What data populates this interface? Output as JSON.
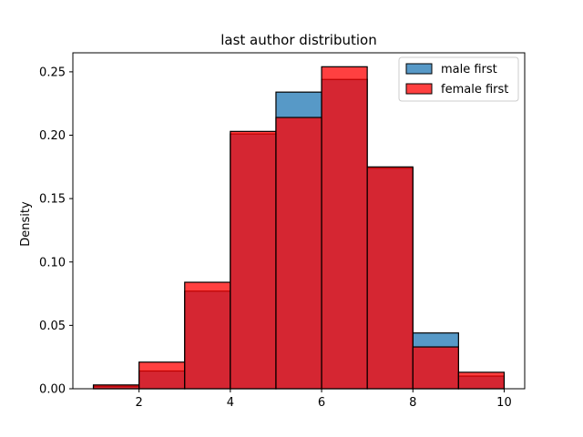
{
  "chart_data": {
    "type": "bar",
    "title": "last author distribution",
    "xlabel": "",
    "ylabel": "Density",
    "bin_edges": [
      1,
      2,
      3,
      4,
      5,
      6,
      7,
      8,
      9,
      10
    ],
    "xlim": [
      0.55,
      10.45
    ],
    "ylim": [
      0,
      0.265
    ],
    "x_ticks": [
      2,
      4,
      6,
      8,
      10
    ],
    "y_ticks": [
      0.0,
      0.05,
      0.1,
      0.15,
      0.2,
      0.25
    ],
    "y_tick_labels": [
      "0.00",
      "0.05",
      "0.10",
      "0.15",
      "0.20",
      "0.25"
    ],
    "grid": false,
    "legend_position": "top-right",
    "series": [
      {
        "name": "male first",
        "color": "#1f77b4",
        "alpha": 0.75,
        "values": [
          0.002,
          0.014,
          0.077,
          0.201,
          0.234,
          0.244,
          0.174,
          0.044,
          0.01
        ]
      },
      {
        "name": "female first",
        "color": "#ff0000",
        "alpha": 0.75,
        "values": [
          0.003,
          0.021,
          0.084,
          0.203,
          0.214,
          0.254,
          0.175,
          0.033,
          0.013
        ]
      }
    ]
  }
}
